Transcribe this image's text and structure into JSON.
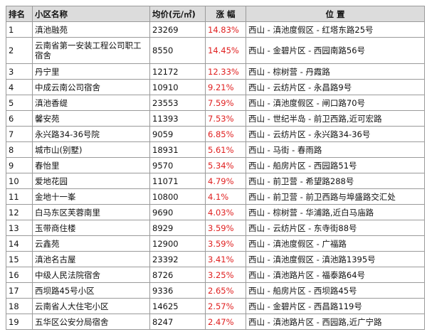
{
  "headers": [
    "排名",
    "小区名称",
    "均价(元/㎡)",
    "涨 幅",
    "位 置"
  ],
  "rows": [
    {
      "rank": "1",
      "name": "滇池融苑",
      "price": "23269",
      "rise": "14.83%",
      "location": "西山 - 滇池度假区 - 红塔东路25号"
    },
    {
      "rank": "2",
      "name": "云南省第一安装工程公司职工宿舍",
      "price": "8550",
      "rise": "14.45%",
      "location": "西山 - 金碧片区 - 西园南路56号"
    },
    {
      "rank": "3",
      "name": "丹宁里",
      "price": "12172",
      "rise": "12.33%",
      "location": "西山 - 棕树营 - 丹霞路"
    },
    {
      "rank": "4",
      "name": "中成云南公司宿舍",
      "price": "10910",
      "rise": "9.21%",
      "location": "西山 - 云纺片区 - 永昌路9号"
    },
    {
      "rank": "5",
      "name": "滇池香缇",
      "price": "23553",
      "rise": "7.59%",
      "location": "西山 - 滇池度假区 - 闸口路70号"
    },
    {
      "rank": "6",
      "name": "馨安苑",
      "price": "11393",
      "rise": "7.53%",
      "location": "西山 - 世纪半岛 - 前卫西路,近可宏路"
    },
    {
      "rank": "7",
      "name": "永兴路34-36号院",
      "price": "9059",
      "rise": "6.85%",
      "location": "西山 - 云纺片区 - 永兴路34-36号"
    },
    {
      "rank": "8",
      "name": "城市山(别墅)",
      "price": "18931",
      "rise": "5.61%",
      "location": "西山 - 马街 - 春雨路"
    },
    {
      "rank": "9",
      "name": "春怡里",
      "price": "9570",
      "rise": "5.34%",
      "location": "西山 - 船房片区 - 西园路51号"
    },
    {
      "rank": "10",
      "name": "爱地花园",
      "price": "11071",
      "rise": "4.79%",
      "location": "西山 - 前卫营 - 希望路288号"
    },
    {
      "rank": "11",
      "name": "金地十一峯",
      "price": "10800",
      "rise": "4.1%",
      "location": "西山 - 前卫营 - 前卫西路与埠盛路交汇处"
    },
    {
      "rank": "12",
      "name": "白马东区芙蓉南里",
      "price": "9690",
      "rise": "4.03%",
      "location": "西山 - 棕树营 - 华浦路,近白马庙路"
    },
    {
      "rank": "13",
      "name": "玉带商住楼",
      "price": "8929",
      "rise": "3.59%",
      "location": "西山 - 云纺片区 - 东寺街88号"
    },
    {
      "rank": "14",
      "name": "云鑫苑",
      "price": "12900",
      "rise": "3.59%",
      "location": "西山 - 滇池度假区 - 广福路"
    },
    {
      "rank": "15",
      "name": "滇池名古屋",
      "price": "23392",
      "rise": "3.41%",
      "location": "西山 - 滇池度假区 - 滇池路1395号"
    },
    {
      "rank": "16",
      "name": "中级人民法院宿舍",
      "price": "8726",
      "rise": "3.25%",
      "location": "西山 - 滇池路片区 - 福泰路64号"
    },
    {
      "rank": "17",
      "name": "西坝路45号小区",
      "price": "9336",
      "rise": "2.65%",
      "location": "西山 - 船房片区 - 西坝路45号"
    },
    {
      "rank": "18",
      "name": "云南省人大住宅小区",
      "price": "14625",
      "rise": "2.57%",
      "location": "西山 - 金碧片区 - 西昌路119号"
    },
    {
      "rank": "19",
      "name": "五华区公安分局宿舍",
      "price": "8247",
      "rise": "2.47%",
      "location": "西山 - 滇池路片区 - 西园路,近广宁路"
    }
  ],
  "colors": {
    "rise_text": "#e02020",
    "header_bg": "#dcdcdc",
    "border": "#9a9a9a"
  }
}
